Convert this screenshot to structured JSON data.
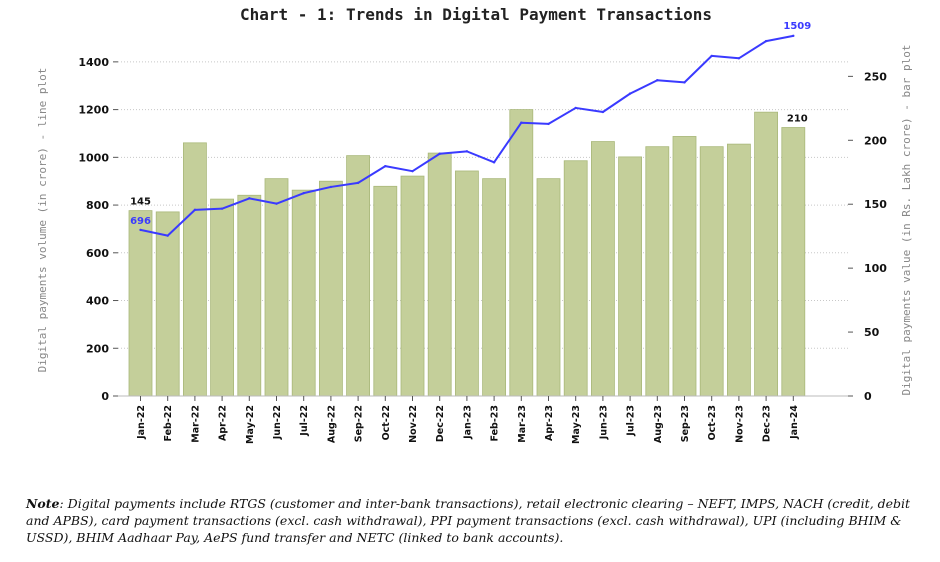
{
  "chart_data": {
    "type": "bar+line",
    "title": "Chart - 1: Trends in Digital Payment Transactions",
    "categories": [
      "Jan-22",
      "Feb-22",
      "Mar-22",
      "Apr-22",
      "May-22",
      "Jun-22",
      "Jul-22",
      "Aug-22",
      "Sep-22",
      "Oct-22",
      "Nov-22",
      "Dec-22",
      "Jan-23",
      "Feb-23",
      "Mar-23",
      "Apr-23",
      "May-23",
      "Jun-23",
      "Jul-23",
      "Aug-23",
      "Sep-23",
      "Oct-23",
      "Nov-23",
      "Dec-23",
      "Jan-24"
    ],
    "series": [
      {
        "kind": "bar",
        "axis": "right",
        "values": [
          145,
          144,
          198,
          154,
          157,
          170,
          161,
          168,
          188,
          164,
          172,
          190,
          176,
          170,
          224,
          170,
          184,
          199,
          187,
          195,
          203,
          195,
          197,
          222,
          210
        ]
      },
      {
        "kind": "line",
        "axis": "left",
        "values": [
          696,
          672,
          780,
          785,
          828,
          806,
          850,
          876,
          893,
          963,
          942,
          1015,
          1025,
          979,
          1145,
          1140,
          1207,
          1190,
          1267,
          1323,
          1314,
          1425,
          1415,
          1487,
          1509
        ]
      }
    ],
    "ylabel_left": "Digital payments volume (in crore) - line plot",
    "ylabel_right": "Digital payments value (in Rs. Lakh crore) - bar plot",
    "ylim_left": [
      0,
      1500
    ],
    "yticks_left": [
      0,
      200,
      400,
      600,
      800,
      1000,
      1200,
      1400
    ],
    "ylim_right": [
      0,
      280
    ],
    "yticks_right": [
      0,
      50,
      100,
      150,
      200,
      250
    ],
    "annotations": [
      {
        "label": "145",
        "series": 0,
        "index": 0
      },
      {
        "label": "696",
        "series": 1,
        "index": 0
      },
      {
        "label": "1509",
        "series": 1,
        "index": 24
      },
      {
        "label": "210",
        "series": 0,
        "index": 24
      }
    ],
    "bar_color": "#c4cf9a",
    "bar_edge_color": "#a9b87a",
    "line_color": "#3a3aff",
    "grid": true,
    "legend": "none"
  },
  "note": {
    "label": "Note",
    "text": ": Digital payments include RTGS (customer and inter-bank transactions), retail electronic clearing – NEFT, IMPS, NACH (credit, debit and APBS), card payment transactions (excl. cash withdrawal), PPI payment transactions (excl. cash withdrawal), UPI (including BHIM & USSD), BHIM Aadhaar Pay, AePS fund transfer and NETC (linked to bank accounts)."
  }
}
